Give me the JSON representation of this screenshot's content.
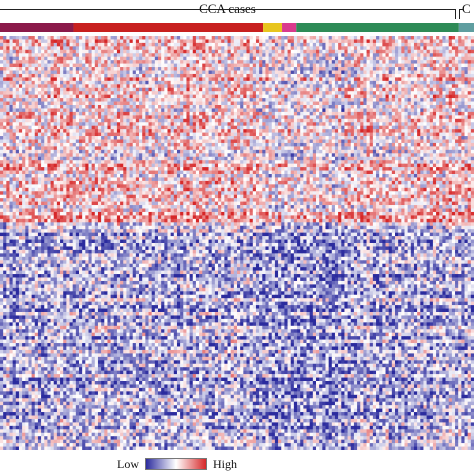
{
  "chart_data": {
    "type": "heatmap",
    "title": "",
    "column_groups": [
      {
        "label": "CCA cases"
      },
      {
        "label": "C"
      }
    ],
    "annotation_bar": {
      "segments": [
        {
          "from": 0.0,
          "to": 0.155,
          "color": "#8b1a4a"
        },
        {
          "from": 0.155,
          "to": 0.555,
          "color": "#c8201f"
        },
        {
          "from": 0.555,
          "to": 0.595,
          "color": "#e8c51e"
        },
        {
          "from": 0.595,
          "to": 0.625,
          "color": "#d93a8d"
        },
        {
          "from": 0.625,
          "to": 0.968,
          "color": "#2e8b57"
        },
        {
          "from": 0.968,
          "to": 1.0,
          "color": "#5f9ea0"
        }
      ]
    },
    "color_scale": {
      "low_label": "Low",
      "high_label": "High",
      "low_color": "#2b2b9e",
      "mid_color": "#ffffff",
      "high_color": "#d62728"
    },
    "layout_hint": {
      "rows": 120,
      "cols": 150,
      "upper_block_fraction": 0.42,
      "upper_block_bias": 0.15,
      "lower_block_bias": -0.32,
      "control_columns_fraction": 0.035
    }
  }
}
